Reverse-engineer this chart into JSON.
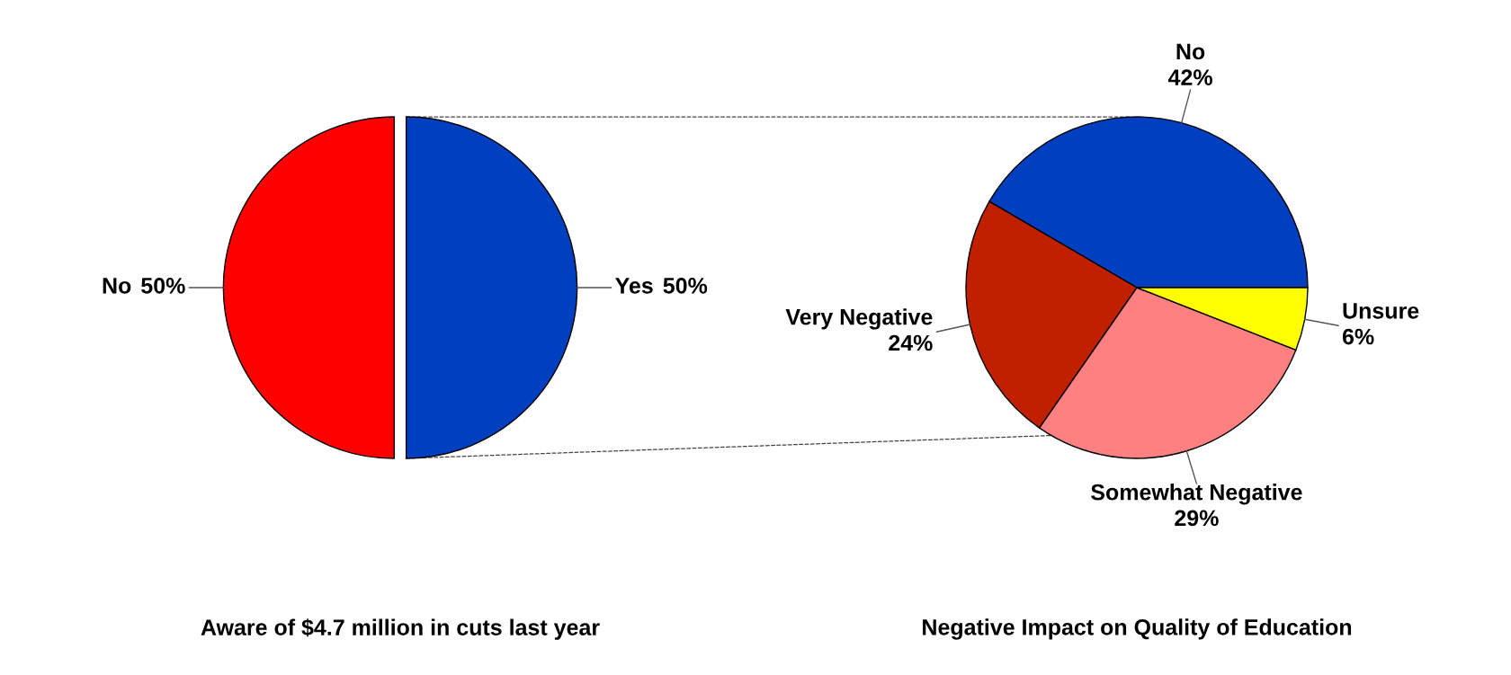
{
  "chart_data": [
    {
      "type": "pie",
      "title": "Aware of $4.7 million in cuts last year",
      "categories": [
        "No",
        "Yes"
      ],
      "values": [
        50,
        50
      ],
      "value_labels": [
        "50%",
        "50%"
      ],
      "colors": [
        "#ff0000",
        "#0040c0"
      ]
    },
    {
      "type": "pie",
      "title": "Negative Impact on Quality of Education",
      "categories": [
        "No",
        "Very Negative",
        "Somewhat Negative",
        "Unsure"
      ],
      "values": [
        42,
        24,
        29,
        6
      ],
      "value_labels": [
        "42%",
        "24%",
        "29%",
        "6%"
      ],
      "colors": [
        "#0040c0",
        "#c02000",
        "#ff8080",
        "#ffff00"
      ]
    }
  ]
}
